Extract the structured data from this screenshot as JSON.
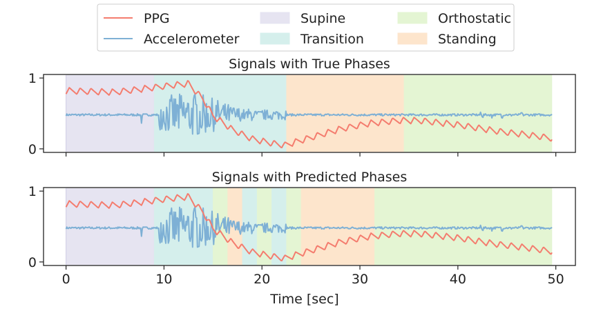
{
  "chart_data": {
    "type": "line",
    "legend": {
      "placement": "top-center",
      "entries": [
        {
          "key": "ppg",
          "label": "PPG",
          "kind": "line"
        },
        {
          "key": "supine",
          "label": "Supine",
          "kind": "patch"
        },
        {
          "key": "orthostatic",
          "label": "Orthostatic",
          "kind": "patch"
        },
        {
          "key": "accel",
          "label": "Accelerometer",
          "kind": "line"
        },
        {
          "key": "transition",
          "label": "Transition",
          "kind": "patch"
        },
        {
          "key": "standing",
          "label": "Standing",
          "kind": "patch"
        }
      ]
    },
    "colors": {
      "ppg": "#f47c6e",
      "accel": "#7eb0d5",
      "supine": "#e6e4f1",
      "transition": "#d5efec",
      "standing": "#fde5cc",
      "orthostatic": "#e4f5d3"
    },
    "xlabel": "Time [sec]",
    "xlim": [
      -2.3,
      52.0
    ],
    "ylim": [
      -0.05,
      1.05
    ],
    "xticks": [
      0,
      10,
      20,
      30,
      40,
      50
    ],
    "yticks": [
      0,
      1
    ],
    "grid": false,
    "series_points": 600,
    "x_range": [
      0,
      49.6
    ],
    "ppg": {
      "oscillation_period_sec": 1.1,
      "oscillation_amplitude": 0.09,
      "envelope": [
        [
          0,
          0.82
        ],
        [
          5,
          0.8
        ],
        [
          8,
          0.85
        ],
        [
          11,
          0.9
        ],
        [
          12.5,
          0.92
        ],
        [
          14,
          0.7
        ],
        [
          15,
          0.47
        ],
        [
          17,
          0.27
        ],
        [
          19,
          0.14
        ],
        [
          21,
          0.08
        ],
        [
          22.3,
          0.05
        ],
        [
          24,
          0.12
        ],
        [
          26,
          0.2
        ],
        [
          28,
          0.28
        ],
        [
          31,
          0.36
        ],
        [
          34,
          0.4
        ],
        [
          36,
          0.4
        ],
        [
          40,
          0.34
        ],
        [
          44,
          0.25
        ],
        [
          47,
          0.2
        ],
        [
          49.6,
          0.15
        ]
      ]
    },
    "accel": {
      "baseline": 0.48,
      "noisy_window": [
        9.5,
        22.5
      ],
      "noise_amplitude": 0.22,
      "dip_at": 7.7
    },
    "panels": [
      {
        "title": "Signals with True Phases",
        "phases": [
          {
            "label": "Supine",
            "start": 0,
            "end": 9.0
          },
          {
            "label": "Transition",
            "start": 9.0,
            "end": 22.5
          },
          {
            "label": "Standing",
            "start": 22.5,
            "end": 34.5
          },
          {
            "label": "Orthostatic",
            "start": 34.5,
            "end": 49.6
          }
        ]
      },
      {
        "title": "Signals with Predicted Phases",
        "phases": [
          {
            "label": "Supine",
            "start": 0,
            "end": 9.0
          },
          {
            "label": "Transition",
            "start": 9.0,
            "end": 15.0
          },
          {
            "label": "Orthostatic",
            "start": 15.0,
            "end": 16.5
          },
          {
            "label": "Standing",
            "start": 16.5,
            "end": 18.0
          },
          {
            "label": "Transition",
            "start": 18.0,
            "end": 19.5
          },
          {
            "label": "Orthostatic",
            "start": 19.5,
            "end": 21.0
          },
          {
            "label": "Transition",
            "start": 21.0,
            "end": 22.5
          },
          {
            "label": "Orthostatic",
            "start": 22.5,
            "end": 24.0
          },
          {
            "label": "Standing",
            "start": 24.0,
            "end": 31.5
          },
          {
            "label": "Orthostatic",
            "start": 31.5,
            "end": 49.6
          }
        ]
      }
    ]
  }
}
